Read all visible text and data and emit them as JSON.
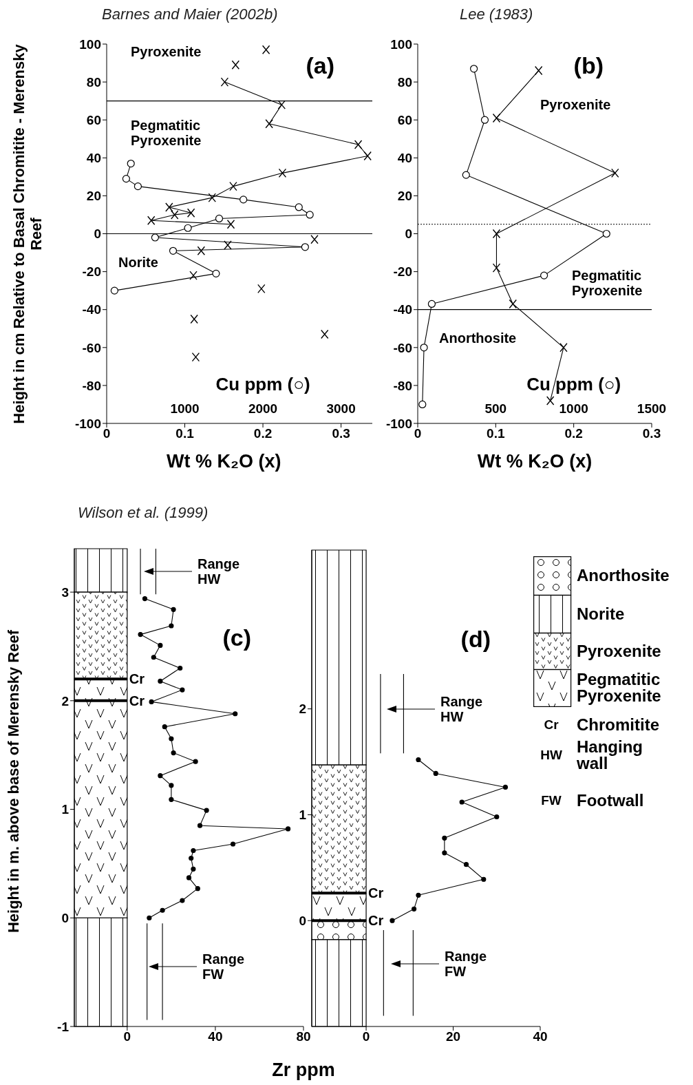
{
  "chart_data": [
    {
      "type": "line",
      "title": "Barnes and Maier (2002b)",
      "xlabel": "Wt % K₂O (x)",
      "x2label": "Cu ppm (○)",
      "ylabel": "Height in cm Relative to Basal Chromitite - Merensky Reef",
      "xlim": [
        0,
        0.34
      ],
      "xticks": [
        0,
        0.1,
        0.2,
        0.3
      ],
      "x2lim": [
        0,
        3400
      ],
      "x2ticks": [
        1000,
        2000,
        3000
      ],
      "ylim": [
        -100,
        100
      ],
      "yticks": [
        -100,
        -80,
        -60,
        -40,
        -20,
        0,
        20,
        40,
        60,
        80,
        100
      ],
      "ref_lines": [
        {
          "axis": "y",
          "value": 70
        },
        {
          "axis": "y",
          "value": 0
        }
      ],
      "annotations": [
        "(a)",
        "Pyroxenite",
        "Pegmatitic Pyroxenite",
        "Norite"
      ],
      "series": [
        {
          "type": "line",
          "marker": "cross",
          "color": "#000000",
          "x": [
            0.151,
            0.224,
            0.208,
            0.322,
            0.334,
            0.225,
            0.162,
            0.135,
            0.08,
            0.108,
            0.087,
            0.057,
            0.159
          ],
          "values": [
            80,
            68,
            58,
            47,
            41,
            32,
            25,
            19,
            14,
            11,
            10,
            7,
            5
          ]
        },
        {
          "type": "scatter",
          "marker": "cross",
          "color": "#000000",
          "x": [
            0.204,
            0.165,
            0.266,
            0.155,
            0.121,
            0.111,
            0.198,
            0.112,
            0.279,
            0.114
          ],
          "values": [
            97,
            89,
            -3,
            -6,
            -9,
            -22,
            -29,
            -45,
            -53,
            -65
          ]
        },
        {
          "type": "line",
          "marker": "circle",
          "axis": "x2",
          "color": "#000000",
          "x": [
            310,
            250,
            400,
            1750,
            2460,
            2600,
            1440,
            1040,
            620,
            2540,
            850,
            1400,
            100
          ],
          "values": [
            37,
            29,
            25,
            18,
            14,
            10,
            8,
            3,
            -2,
            -7,
            -9,
            -21,
            -30
          ]
        }
      ]
    },
    {
      "type": "line",
      "title": "Lee (1983)",
      "xlabel": "Wt % K₂O (x)",
      "x2label": "Cu ppm (○)",
      "xlim": [
        0,
        0.3
      ],
      "xticks": [
        0,
        0.1,
        0.2,
        0.3
      ],
      "x2lim": [
        0,
        1500
      ],
      "x2ticks": [
        500,
        1000,
        1500
      ],
      "ylim": [
        -100,
        100
      ],
      "yticks": [
        -100,
        -80,
        -60,
        -40,
        -20,
        0,
        20,
        40,
        60,
        80,
        100
      ],
      "ref_lines": [
        {
          "axis": "y",
          "value": 5,
          "line_style": "dotted"
        },
        {
          "axis": "y",
          "value": -40
        }
      ],
      "annotations": [
        "(b)",
        "Pyroxenite",
        "Pegmatitic Pyroxenite",
        "Anorthosite"
      ],
      "series": [
        {
          "type": "line",
          "marker": "cross",
          "color": "#000000",
          "x": [
            0.155,
            0.101,
            0.253,
            0.101,
            0.101,
            0.122,
            0.187,
            0.17
          ],
          "values": [
            86,
            61,
            32,
            0,
            -18,
            -37,
            -60,
            -88
          ]
        },
        {
          "type": "line",
          "marker": "circle",
          "axis": "x2",
          "color": "#000000",
          "x": [
            360,
            430,
            310,
            1210,
            810,
            90,
            40,
            30
          ],
          "values": [
            87,
            60,
            31,
            0,
            -22,
            -37,
            -60,
            -90
          ]
        }
      ]
    },
    {
      "type": "line",
      "title": "Wilson et al. (1999)",
      "xlabel": "Zr ppm",
      "ylabel": "Height in m. above base of Merensky Reef",
      "xlim": [
        -24,
        80
      ],
      "xticks": [
        0,
        40,
        80
      ],
      "ylim": [
        -1,
        3.4
      ],
      "yticks": [
        -1,
        0,
        1,
        2,
        3
      ],
      "bands": [
        {
          "axis": "y",
          "from": 3.0,
          "to": 3.4
        },
        {
          "axis": "y",
          "from": 2.2,
          "to": 3.0
        },
        {
          "axis": "y",
          "from": 0,
          "to": 2.2
        },
        {
          "axis": "y",
          "from": -1,
          "to": 0
        }
      ],
      "ref_lines": [
        {
          "axis": "y",
          "value": 2.2,
          "label": "Cr"
        },
        {
          "axis": "y",
          "value": 2.0,
          "label": "Cr"
        }
      ],
      "annotations": [
        "(c)",
        "Range HW",
        "Range FW"
      ],
      "series": [
        {
          "type": "line",
          "marker": "circle",
          "color": "#000000",
          "x": [
            8,
            21,
            20,
            6,
            15,
            12,
            24,
            15,
            25,
            11,
            49,
            17,
            20,
            21,
            31,
            15,
            20,
            20,
            36,
            33,
            73,
            48,
            30,
            29,
            30,
            28,
            32,
            25,
            16,
            10
          ],
          "values": [
            2.94,
            2.84,
            2.69,
            2.61,
            2.51,
            2.4,
            2.3,
            2.18,
            2.1,
            1.99,
            1.88,
            1.76,
            1.65,
            1.52,
            1.44,
            1.31,
            1.22,
            1.09,
            0.99,
            0.85,
            0.82,
            0.68,
            0.62,
            0.55,
            0.45,
            0.37,
            0.27,
            0.16,
            0.07,
            0.0
          ]
        },
        {
          "type": "line",
          "marker": "none",
          "color": "#000000",
          "x": [
            6,
            6
          ],
          "values": [
            2.98,
            3.4
          ]
        },
        {
          "type": "line",
          "marker": "none",
          "color": "#000000",
          "x": [
            13,
            13
          ],
          "values": [
            2.98,
            3.4
          ]
        },
        {
          "type": "line",
          "marker": "none",
          "color": "#000000",
          "x": [
            9,
            9
          ],
          "values": [
            -0.05,
            -0.94
          ]
        },
        {
          "type": "line",
          "marker": "none",
          "color": "#000000",
          "x": [
            16,
            16
          ],
          "values": [
            -0.05,
            -0.94
          ]
        }
      ]
    },
    {
      "type": "line",
      "xlim": [
        -12.5,
        40
      ],
      "xticks": [
        0,
        20,
        40
      ],
      "ylim": [
        -1,
        3.5
      ],
      "yticks": [
        0,
        1,
        2
      ],
      "bands": [
        {
          "axis": "y",
          "from": 1.47,
          "to": 3.5
        },
        {
          "axis": "y",
          "from": 0.26,
          "to": 1.47
        },
        {
          "axis": "y",
          "from": 0,
          "to": 0.26
        },
        {
          "axis": "y",
          "from": -0.18,
          "to": 0
        },
        {
          "axis": "y",
          "from": -1,
          "to": -0.18
        }
      ],
      "ref_lines": [
        {
          "axis": "y",
          "value": 0.26,
          "label": "Cr"
        },
        {
          "axis": "y",
          "value": 0,
          "label": "Cr"
        }
      ],
      "annotations": [
        "(d)",
        "Range HW",
        "Range FW"
      ],
      "series": [
        {
          "type": "line",
          "marker": "circle",
          "color": "#000000",
          "x": [
            12,
            16,
            32,
            22,
            30,
            18,
            18,
            23,
            27,
            12,
            11,
            6
          ],
          "values": [
            1.52,
            1.39,
            1.26,
            1.12,
            0.98,
            0.78,
            0.64,
            0.53,
            0.39,
            0.24,
            0.11,
            0.0
          ]
        },
        {
          "type": "line",
          "marker": "none",
          "color": "#000000",
          "x": [
            3.3,
            3.3
          ],
          "values": [
            1.58,
            2.33
          ]
        },
        {
          "type": "line",
          "marker": "none",
          "color": "#000000",
          "x": [
            8.6,
            8.6
          ],
          "values": [
            1.58,
            2.33
          ]
        },
        {
          "type": "line",
          "marker": "none",
          "color": "#000000",
          "x": [
            4,
            4
          ],
          "values": [
            -0.09,
            -0.9
          ]
        },
        {
          "type": "line",
          "marker": "none",
          "color": "#000000",
          "x": [
            10.8,
            10.8
          ],
          "values": [
            -0.09,
            -0.9
          ]
        }
      ]
    },
    {
      "type": "other",
      "annotations": [
        "Anorthosite",
        "Norite",
        "Pyroxenite",
        "Pegmatitic Pyroxenite",
        "Cr",
        "Chromitite",
        "HW",
        "Hanging wall",
        "FW",
        "Footwall"
      ]
    }
  ]
}
